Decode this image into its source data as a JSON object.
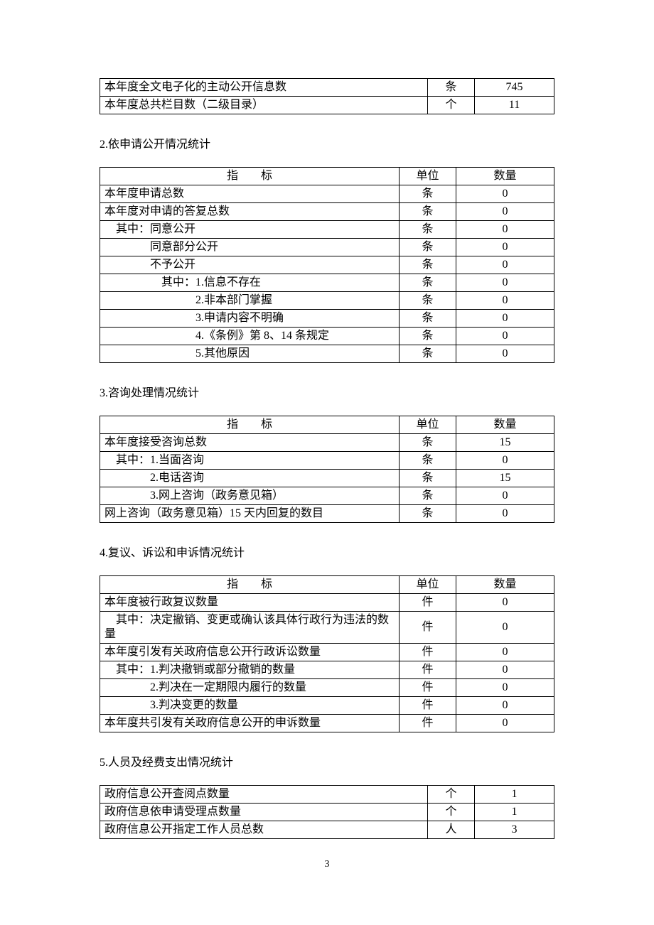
{
  "header_labels": {
    "indicator": "指　　标",
    "unit": "单位",
    "quantity": "数量"
  },
  "table1": {
    "rows": [
      {
        "label": "本年度全文电子化的主动公开信息数",
        "unit": "条",
        "qty": "745"
      },
      {
        "label": "本年度总共栏目数（二级目录）",
        "unit": "个",
        "qty": "11"
      }
    ]
  },
  "section2": {
    "title": "2.依申请公开情况统计",
    "rows": [
      {
        "label": "本年度申请总数",
        "unit": "条",
        "qty": "0"
      },
      {
        "label": "本年度对申请的答复总数",
        "unit": "条",
        "qty": "0"
      },
      {
        "label": "　其中：同意公开",
        "unit": "条",
        "qty": "0"
      },
      {
        "label": "　　　　同意部分公开",
        "unit": "条",
        "qty": "0"
      },
      {
        "label": "　　　　不予公开",
        "unit": "条",
        "qty": "0"
      },
      {
        "label": "　　　　　其中：1.信息不存在",
        "unit": "条",
        "qty": "0"
      },
      {
        "label": "　　　　　　　　2.非本部门掌握",
        "unit": "条",
        "qty": "0"
      },
      {
        "label": "　　　　　　　　3.申请内容不明确",
        "unit": "条",
        "qty": "0"
      },
      {
        "label": "　　　　　　　　4.《条例》第 8、14 条规定",
        "unit": "条",
        "qty": "0"
      },
      {
        "label": "　　　　　　　　5.其他原因",
        "unit": "条",
        "qty": "0"
      }
    ]
  },
  "section3": {
    "title": "3.咨询处理情况统计",
    "rows": [
      {
        "label": "本年度接受咨询总数",
        "unit": "条",
        "qty": "15"
      },
      {
        "label": "　其中：1.当面咨询",
        "unit": "条",
        "qty": "0"
      },
      {
        "label": "　　　　2.电话咨询",
        "unit": "条",
        "qty": "15"
      },
      {
        "label": "　　　　3.网上咨询（政务意见箱）",
        "unit": "条",
        "qty": "0"
      },
      {
        "label": "网上咨询（政务意见箱）15 天内回复的数目",
        "unit": "条",
        "qty": "0"
      }
    ]
  },
  "section4": {
    "title": "4.复议、诉讼和申诉情况统计",
    "rows": [
      {
        "label": "本年度被行政复议数量",
        "unit": "件",
        "qty": "0"
      },
      {
        "label": "　其中：决定撤销、变更或确认该具体行政行为违法的数量",
        "unit": "件",
        "qty": "0"
      },
      {
        "label": "本年度引发有关政府信息公开行政诉讼数量",
        "unit": "件",
        "qty": "0"
      },
      {
        "label": "　其中：1.判决撤销或部分撤销的数量",
        "unit": "件",
        "qty": "0"
      },
      {
        "label": "　　　　2.判决在一定期限内履行的数量",
        "unit": "件",
        "qty": "0"
      },
      {
        "label": "　　　　3.判决变更的数量",
        "unit": "件",
        "qty": "0"
      },
      {
        "label": "本年度共引发有关政府信息公开的申诉数量",
        "unit": "件",
        "qty": "0"
      }
    ]
  },
  "section5": {
    "title": "5.人员及经费支出情况统计",
    "rows": [
      {
        "label": "政府信息公开查阅点数量",
        "unit": "个",
        "qty": "1"
      },
      {
        "label": "政府信息依申请受理点数量",
        "unit": "个",
        "qty": "1"
      },
      {
        "label": "政府信息公开指定工作人员总数",
        "unit": "人",
        "qty": "3"
      }
    ]
  },
  "page_number": "3"
}
